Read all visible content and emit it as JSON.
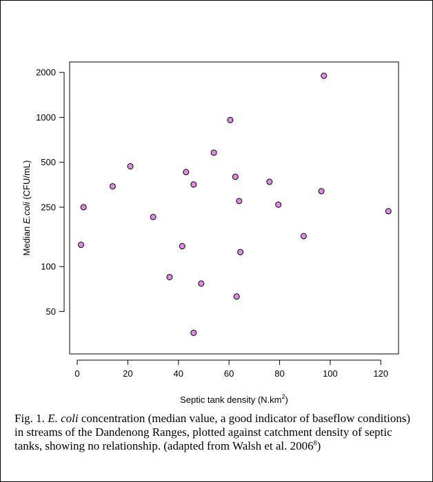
{
  "chart_data": {
    "type": "scatter",
    "xlabel": "Septic tank density (N.km",
    "xlabel_sup": "2",
    "xlabel_tail": ")",
    "ylabel_pre": "Median ",
    "ylabel_italic": "E.coli",
    "ylabel_post": " (CFU/mL)",
    "x_ticks": [
      0,
      20,
      40,
      60,
      80,
      100,
      120
    ],
    "y_ticks": [
      50,
      100,
      250,
      500,
      1000,
      2000
    ],
    "y_scale": "log",
    "xlim": [
      -3,
      127
    ],
    "ylim": [
      26,
      2350
    ],
    "marker_color": "#e38ae6",
    "points": [
      {
        "x": 1.5,
        "y": 140
      },
      {
        "x": 2.5,
        "y": 250
      },
      {
        "x": 14,
        "y": 345
      },
      {
        "x": 21,
        "y": 470
      },
      {
        "x": 30,
        "y": 215
      },
      {
        "x": 36.5,
        "y": 85
      },
      {
        "x": 41.5,
        "y": 137
      },
      {
        "x": 43,
        "y": 430
      },
      {
        "x": 46,
        "y": 355
      },
      {
        "x": 46,
        "y": 36
      },
      {
        "x": 49,
        "y": 77
      },
      {
        "x": 54,
        "y": 580
      },
      {
        "x": 60.5,
        "y": 960
      },
      {
        "x": 62.5,
        "y": 400
      },
      {
        "x": 63,
        "y": 63
      },
      {
        "x": 64,
        "y": 275
      },
      {
        "x": 64.5,
        "y": 125
      },
      {
        "x": 76,
        "y": 370
      },
      {
        "x": 79.5,
        "y": 260
      },
      {
        "x": 89.5,
        "y": 160
      },
      {
        "x": 96.5,
        "y": 320
      },
      {
        "x": 97.5,
        "y": 1900
      },
      {
        "x": 123,
        "y": 235
      }
    ]
  },
  "caption": {
    "fig_label": "Fig. 1.  ",
    "species": "E. coli",
    "text": " concentration (median value, a good indicator of baseflow conditions) in streams of the Dandenong Ranges, plotted against catchment density of septic tanks, showing no relationship. (adapted from Walsh et al. 2006",
    "ref_sup": "8",
    "tail": ")"
  }
}
